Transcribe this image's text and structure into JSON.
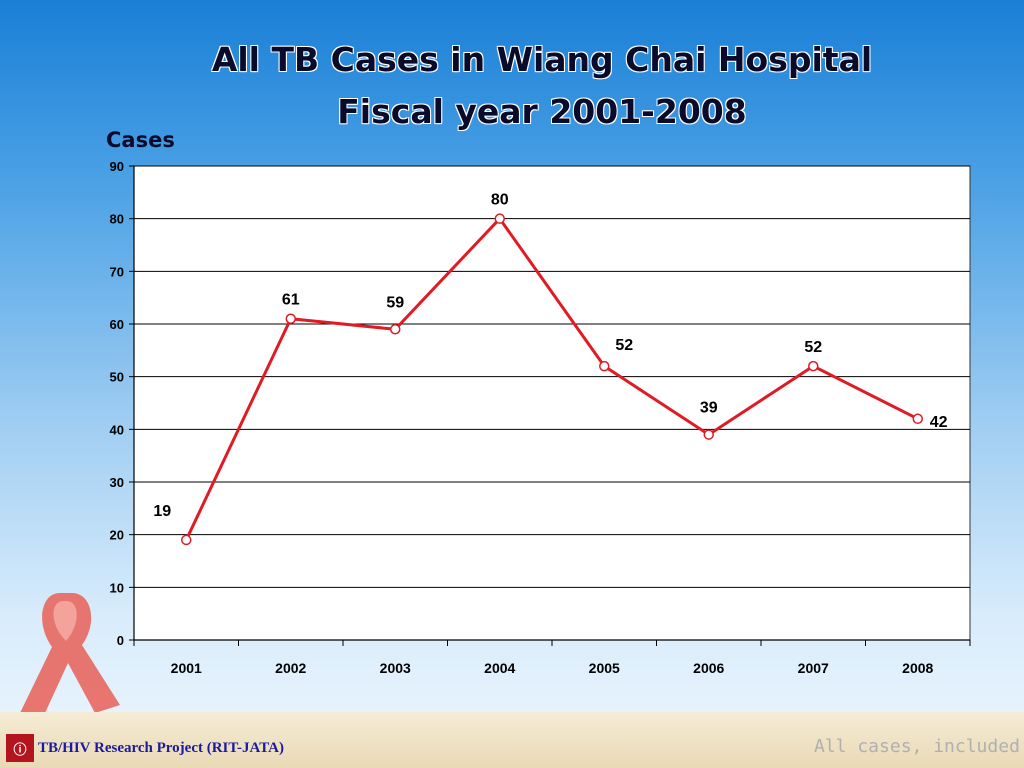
{
  "slide": {
    "title_line1": "All TB Cases in Wiang Chai Hospital",
    "title_line2": "Fiscal year 2001-2008",
    "footer_project": "TB/HIV Research Project (RIT-JATA)",
    "footer_note": "All cases, included T",
    "logo_text": "ᵗᵃ"
  },
  "chart_data": {
    "type": "line",
    "title": "All TB Cases in Wiang Chai Hospital Fiscal year 2001-2008",
    "ylabel": "Cases",
    "xlabel": "",
    "categories": [
      "2001",
      "2002",
      "2003",
      "2004",
      "2005",
      "2006",
      "2007",
      "2008"
    ],
    "series": [
      {
        "values": [
          19,
          61,
          59,
          80,
          52,
          39,
          52,
          42
        ]
      }
    ],
    "ylim": [
      0,
      90
    ],
    "yticks": [
      0,
      10,
      20,
      30,
      40,
      50,
      60,
      70,
      80,
      90
    ],
    "grid": true,
    "legend": "none",
    "line_color": "#e01b24",
    "plot_background": "#ffffff",
    "gridline_color": "#000000"
  }
}
